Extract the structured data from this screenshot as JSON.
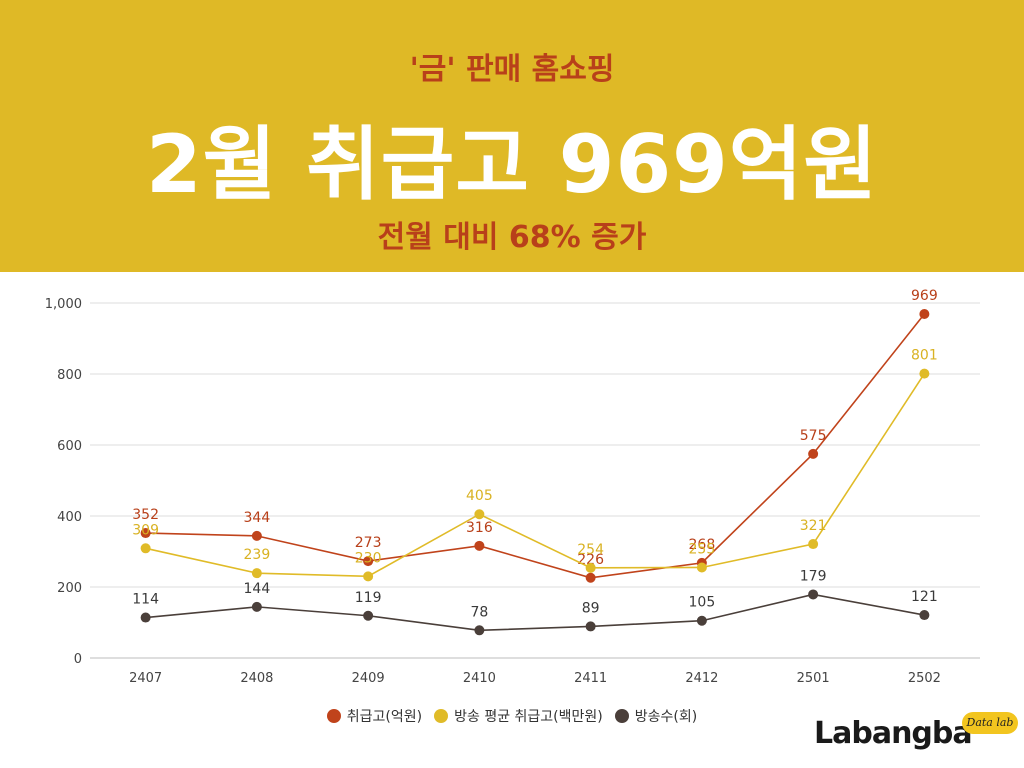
{
  "header": {
    "top_line": "'금' 판매 홈쇼핑",
    "headline": "2월 취급고 969억원",
    "bottom_line": "전월 대비 68% 증가"
  },
  "brand": {
    "wordmark": "Labangba",
    "tag": "Data lab"
  },
  "colors": {
    "header_bg": "#dfb926",
    "accent_text": "#b8401a",
    "series_sales": "#c0431b",
    "series_avg": "#e0bb28",
    "series_count": "#4a3f3a"
  },
  "chart_data": {
    "type": "line",
    "categories": [
      "2407",
      "2408",
      "2409",
      "2410",
      "2411",
      "2412",
      "2501",
      "2502"
    ],
    "ylim": [
      0,
      1000
    ],
    "yticks": [
      0,
      200,
      400,
      600,
      800,
      1000
    ],
    "ytick_labels": [
      "0",
      "200",
      "400",
      "600",
      "800",
      "1,000"
    ],
    "grid": true,
    "legend_position": "bottom",
    "series": [
      {
        "name": "취급고(억원)",
        "color": "#c0431b",
        "label_color": "#b8401a",
        "values": [
          352,
          344,
          273,
          316,
          226,
          268,
          575,
          969
        ]
      },
      {
        "name": "방송 평균 취급고(백만원)",
        "color": "#e0bb28",
        "label_color": "#d9b223",
        "values": [
          309,
          239,
          230,
          405,
          254,
          255,
          321,
          801
        ]
      },
      {
        "name": "방송수(회)",
        "color": "#4a3f3a",
        "label_color": "#3a3a3a",
        "values": [
          114,
          144,
          119,
          78,
          89,
          105,
          179,
          121
        ]
      }
    ]
  }
}
